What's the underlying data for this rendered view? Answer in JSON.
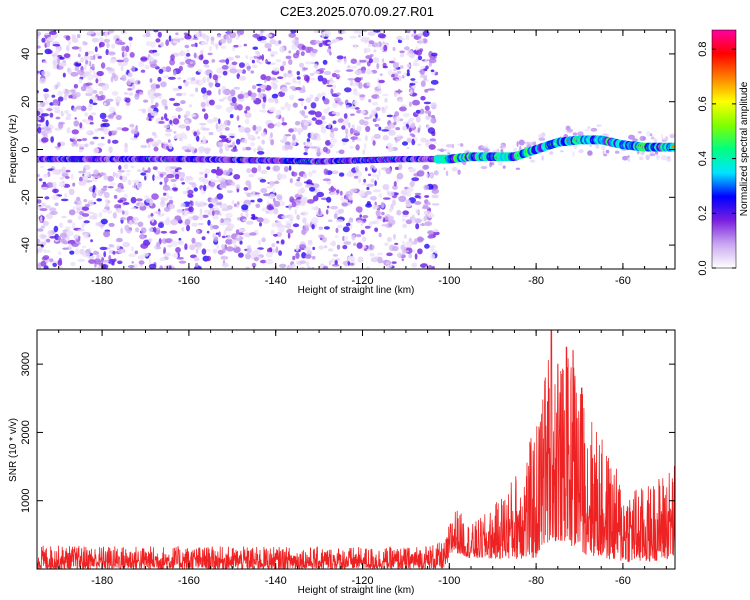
{
  "title": "C2E3.2025.070.09.27.R01",
  "chart_data": [
    {
      "type": "heatmap",
      "xlabel": "Height of straight line (km)",
      "ylabel": "Frequency (Hz)",
      "xlim": [
        -195,
        -48
      ],
      "ylim": [
        -50,
        50
      ],
      "x_ticks": [
        -180,
        -160,
        -140,
        -120,
        -100,
        -80,
        -60
      ],
      "y_ticks": [
        -40,
        -20,
        0,
        20,
        40
      ],
      "colorbar": {
        "label": "Normalized spectral amplitude",
        "range": [
          0.0,
          0.87
        ],
        "ticks": [
          "0.0",
          "0.2",
          "0.4",
          "0.6",
          "0.8"
        ],
        "colors": [
          "#ffffff",
          "#c9a8f0",
          "#7a1fe0",
          "#0000ff",
          "#00e5ff",
          "#00ff80",
          "#80ff00",
          "#ffff00",
          "#ff8000",
          "#ff0000",
          "#ff00a0"
        ]
      },
      "ridge": [
        {
          "x": -195,
          "f": -4
        },
        {
          "x": -160,
          "f": -4
        },
        {
          "x": -130,
          "f": -5
        },
        {
          "x": -110,
          "f": -4
        },
        {
          "x": -103,
          "f": -4
        },
        {
          "x": -100,
          "f": -4
        },
        {
          "x": -95,
          "f": -3
        },
        {
          "x": -90,
          "f": -3
        },
        {
          "x": -85,
          "f": -3
        },
        {
          "x": -80,
          "f": 0
        },
        {
          "x": -75,
          "f": 3
        },
        {
          "x": -70,
          "f": 4
        },
        {
          "x": -65,
          "f": 4
        },
        {
          "x": -60,
          "f": 2
        },
        {
          "x": -55,
          "f": 1
        },
        {
          "x": -50,
          "f": 1
        }
      ]
    },
    {
      "type": "line",
      "xlabel": "Height of straight line (km)",
      "ylabel": "SNR (10 * v/v)",
      "xlim": [
        -195,
        -48
      ],
      "ylim": [
        0,
        3500
      ],
      "x_ticks": [
        -180,
        -160,
        -140,
        -120,
        -100,
        -80,
        -60
      ],
      "y_ticks": [
        1000,
        2000,
        3000
      ],
      "color": "#ee2222",
      "envelope": [
        {
          "x": -195,
          "lo": 0,
          "hi": 350
        },
        {
          "x": -150,
          "lo": 0,
          "hi": 330
        },
        {
          "x": -110,
          "lo": 0,
          "hi": 320
        },
        {
          "x": -101,
          "lo": 0,
          "hi": 400
        },
        {
          "x": -99,
          "lo": 250,
          "hi": 950
        },
        {
          "x": -95,
          "lo": 150,
          "hi": 650
        },
        {
          "x": -90,
          "lo": 150,
          "hi": 900
        },
        {
          "x": -85,
          "lo": 150,
          "hi": 1400
        },
        {
          "x": -80,
          "lo": 150,
          "hi": 2100
        },
        {
          "x": -77,
          "lo": 400,
          "hi": 3300
        },
        {
          "x": -74,
          "lo": 400,
          "hi": 3000
        },
        {
          "x": -71,
          "lo": 300,
          "hi": 3200
        },
        {
          "x": -68,
          "lo": 200,
          "hi": 2400
        },
        {
          "x": -64,
          "lo": 150,
          "hi": 1800
        },
        {
          "x": -60,
          "lo": 100,
          "hi": 1300
        },
        {
          "x": -55,
          "lo": 100,
          "hi": 1200
        },
        {
          "x": -48,
          "lo": 150,
          "hi": 1600
        }
      ],
      "peaks": [
        {
          "x": -76.5,
          "y": 3500
        },
        {
          "x": -73,
          "y": 3250
        },
        {
          "x": -71.5,
          "y": 3200
        },
        {
          "x": -75,
          "y": 3000
        },
        {
          "x": -78,
          "y": 2750
        },
        {
          "x": -69.5,
          "y": 2650
        }
      ]
    }
  ]
}
